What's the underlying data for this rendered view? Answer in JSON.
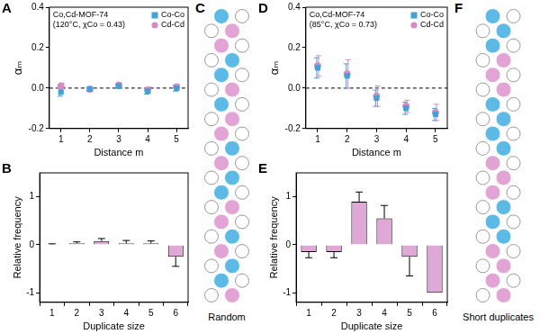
{
  "chart_data": [
    {
      "panel_label": "A",
      "type": "scatter",
      "annotations": [
        "Co,Cd-MOF-74",
        "(120°C, χCo = 0.43)"
      ],
      "x_label": "Distance m",
      "y_label": "αₘ",
      "x": [
        1,
        2,
        3,
        4,
        5
      ],
      "xlim": [
        0.6,
        5.4
      ],
      "xticks": [
        1,
        2,
        3,
        4,
        5
      ],
      "ylim": [
        -0.2,
        0.4
      ],
      "yticks": [
        -0.2,
        {
          "value": 0,
          "label": "0.0"
        },
        0.2,
        0.4
      ],
      "reference_lines": [
        0
      ],
      "legend": "upper right",
      "grid": false,
      "series": [
        {
          "name": "Co-Co",
          "color": "#3fa2d9",
          "marker": "square",
          "values": [
            -0.02,
            -0.005,
            0.01,
            -0.015,
            0.0
          ],
          "errors": [
            0.02,
            0.01,
            0.01,
            0.015,
            0.015
          ]
        },
        {
          "name": "Cd-Cd",
          "color": "#d48bc4",
          "marker": "circle",
          "values": [
            0.01,
            -0.005,
            0.015,
            -0.01,
            0.005
          ],
          "errors": [
            0.015,
            0.01,
            0.01,
            0.015,
            0.015
          ]
        }
      ]
    },
    {
      "panel_label": "B",
      "type": "bar",
      "x_label": "Duplicate size",
      "y_label": "Relative frequency",
      "categories": [
        "1",
        "2",
        "3",
        "4",
        "5",
        "6"
      ],
      "values": [
        0.01,
        0.03,
        0.08,
        0.03,
        0.03,
        -0.25
      ],
      "errors": [
        0.01,
        0.03,
        0.05,
        0.06,
        0.05,
        0.2
      ],
      "color": "#e0a8d6",
      "ylim": [
        -1.2,
        1.5
      ],
      "yticks": [
        -1,
        0,
        1
      ],
      "grid": false
    },
    {
      "panel_label": "D",
      "type": "scatter",
      "annotations": [
        "Co,Cd-MOF-74",
        "(85°C, χCo = 0.73)"
      ],
      "x_label": "Distance m",
      "y_label": "αₘ",
      "x": [
        1,
        2,
        3,
        4,
        5
      ],
      "xlim": [
        0.6,
        5.4
      ],
      "xticks": [
        1,
        2,
        3,
        4,
        5
      ],
      "ylim": [
        -0.2,
        0.4
      ],
      "yticks": [
        -0.2,
        {
          "value": 0,
          "label": "0.0"
        },
        0.2,
        0.4
      ],
      "reference_lines": [
        0
      ],
      "legend": "upper right",
      "grid": false,
      "series": [
        {
          "name": "Co-Co",
          "color": "#3fa2d9",
          "marker": "square",
          "values": [
            0.1,
            0.06,
            -0.05,
            -0.1,
            -0.13
          ],
          "errors": [
            0.05,
            0.06,
            0.04,
            0.03,
            0.03
          ]
        },
        {
          "name": "Cd-Cd",
          "color": "#d48bc4",
          "marker": "circle",
          "values": [
            0.11,
            0.07,
            -0.04,
            -0.09,
            -0.12
          ],
          "errors": [
            0.05,
            0.07,
            0.05,
            0.03,
            0.04
          ]
        }
      ]
    },
    {
      "panel_label": "E",
      "type": "bar",
      "x_label": "Duplicate size",
      "y_label": "Relative frequency",
      "categories": [
        "1",
        "2",
        "3",
        "4",
        "5",
        "6"
      ],
      "values": [
        -0.15,
        -0.15,
        0.9,
        0.55,
        -0.25,
        -1.0
      ],
      "errors": [
        0.12,
        0.12,
        0.2,
        0.27,
        0.4,
        0
      ],
      "color": "#e0a8d6",
      "ylim": [
        -1.2,
        1.5
      ],
      "yticks": [
        -1,
        0,
        1
      ],
      "grid": false
    }
  ],
  "diagrams": [
    {
      "panel_label": "C",
      "caption": "Random",
      "colors": {
        "Co": "#5cbbe6",
        "Cd": "#e2a3d5"
      },
      "sequence": [
        "Co",
        "Cd",
        "Cd",
        "Co",
        "Co",
        "Cd",
        "Co",
        "Cd",
        "Cd",
        "Co",
        "Cd",
        "Co",
        "Co",
        "Cd",
        "Cd",
        "Co",
        "Cd",
        "Co",
        "Co",
        "Cd"
      ]
    },
    {
      "panel_label": "F",
      "caption": "Short duplicates",
      "colors": {
        "Co": "#5cbbe6",
        "Cd": "#e2a3d5"
      },
      "sequence": [
        "Co",
        "Co",
        "Co",
        "Cd",
        "Cd",
        "Cd",
        "Co",
        "Co",
        "Co",
        "Co",
        "Cd",
        "Cd",
        "Cd",
        "Co",
        "Co",
        "Co",
        "Cd",
        "Cd",
        "Cd",
        "Cd"
      ]
    }
  ]
}
